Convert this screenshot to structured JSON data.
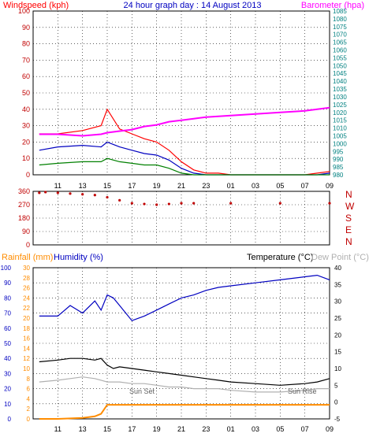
{
  "colors": {
    "wind": "#ff0000",
    "gust": "#ff0000",
    "avg": "#0000c0",
    "low": "#008000",
    "baro": "#ff00ff",
    "dir": "#c00000",
    "rain": "#ff8c00",
    "humidity": "#0000c0",
    "temp": "#000000",
    "dew": "#b0b0b0",
    "axisBlue": "#0000c0",
    "axisGreen": "#008080",
    "grid": "#000000"
  },
  "header": {
    "windspeed": "Windspeed (kph)",
    "title": "24 hour graph day : 14 August 2013",
    "barometer": "Barometer (hpa)"
  },
  "labels": {
    "rainfall": "Rainfall (mm)",
    "humidity": "Humidity (%)",
    "temperature": "Temperature (°C)",
    "dewpoint": "Dew Point (°C)",
    "sunset": "Sun Set",
    "sunrise": "Sun Rise"
  },
  "chart_data": [
    {
      "type": "line",
      "x_ticks": [
        "11",
        "13",
        "15",
        "17",
        "19",
        "21",
        "23",
        "01",
        "03",
        "05",
        "07",
        "09"
      ],
      "x": [
        9.5,
        11,
        13,
        14.5,
        15,
        16,
        17,
        18,
        19,
        20,
        21,
        22,
        23,
        24,
        25,
        27,
        29,
        31,
        32,
        33
      ],
      "left_axis": {
        "label": "Windspeed (kph)",
        "ylim": [
          0,
          100
        ],
        "ticks": [
          0,
          10,
          20,
          30,
          40,
          50,
          60,
          70,
          80,
          90,
          100
        ]
      },
      "right_axis": {
        "label": "Barometer (hpa)",
        "ylim": [
          980,
          1085
        ],
        "ticks": [
          980,
          985,
          990,
          995,
          1000,
          1005,
          1010,
          1015,
          1020,
          1025,
          1030,
          1035,
          1040,
          1045,
          1050,
          1055,
          1060,
          1065,
          1070,
          1075,
          1080,
          1085
        ]
      },
      "series": [
        {
          "name": "Windspeed (kph)",
          "axis": "left",
          "values": [
            25,
            25,
            27,
            30,
            40,
            28,
            25,
            22,
            20,
            15,
            8,
            3,
            1,
            1,
            0,
            0,
            0,
            0,
            1,
            2
          ]
        },
        {
          "values": [
            15,
            17,
            18,
            17,
            20,
            17,
            15,
            13,
            12,
            9,
            4,
            1,
            0,
            0,
            0,
            0,
            0,
            0,
            0,
            1
          ]
        },
        {
          "values": [
            6,
            7,
            8,
            8,
            10,
            8,
            7,
            6,
            6,
            4,
            1,
            0,
            0,
            0,
            0,
            0,
            0,
            0,
            0,
            0
          ]
        },
        {
          "name": "Barometer (hpa)",
          "axis": "right",
          "values": [
            1006,
            1006,
            1005,
            1006,
            1007,
            1008,
            1009,
            1011,
            1012,
            1014,
            1015,
            1016,
            1017,
            1017.5,
            1018,
            1019,
            1020,
            1021,
            1022,
            1023
          ]
        }
      ]
    },
    {
      "type": "scatter",
      "x_ticks": [],
      "x": [
        9.5,
        10,
        11,
        12,
        13,
        14,
        15,
        16,
        17,
        18,
        19,
        20,
        21,
        22,
        25,
        29,
        33
      ],
      "left_axis": {
        "ylim": [
          0,
          360
        ],
        "ticks": [
          0,
          90,
          180,
          270,
          360
        ]
      },
      "right_axis": {
        "ticks": [
          "N",
          "W",
          "S",
          "E",
          "N"
        ]
      },
      "series": [
        {
          "values": [
            350,
            355,
            350,
            345,
            340,
            335,
            320,
            300,
            280,
            275,
            270,
            275,
            280,
            280,
            280,
            280,
            280
          ]
        }
      ]
    },
    {
      "type": "line",
      "x_ticks": [
        "11",
        "13",
        "15",
        "17",
        "19",
        "21",
        "23",
        "01",
        "03",
        "05",
        "07",
        "09"
      ],
      "x": [
        9.5,
        11,
        12,
        13,
        14,
        14.5,
        15,
        15.5,
        16,
        17,
        18,
        19,
        20,
        21,
        22,
        23,
        24,
        25,
        27,
        29,
        31,
        32,
        33
      ],
      "left_axis": {
        "ylim": [
          0,
          100
        ],
        "ticks": [
          0,
          10,
          20,
          30,
          40,
          50,
          60,
          70,
          80,
          90,
          100
        ]
      },
      "left_axis_2": {
        "ylim": [
          0,
          30
        ],
        "ticks": [
          0,
          2,
          4,
          6,
          8,
          10,
          12,
          14,
          16,
          18,
          20,
          22,
          24,
          26,
          28,
          30
        ]
      },
      "right_axis": {
        "ylim": [
          -5,
          40
        ],
        "ticks": [
          -5,
          0,
          5,
          10,
          15,
          20,
          25,
          30,
          35,
          40
        ]
      },
      "series": [
        {
          "name": "Humidity (%)",
          "axis": "left",
          "values": [
            68,
            68,
            75,
            70,
            78,
            72,
            82,
            80,
            75,
            65,
            68,
            72,
            76,
            80,
            82,
            85,
            87,
            88,
            90,
            92,
            94,
            95,
            92
          ]
        },
        {
          "name": "Temperature (°C)",
          "axis": "right",
          "values": [
            12,
            12.5,
            13,
            13,
            12.5,
            13,
            11,
            10,
            10.5,
            10,
            9.5,
            9,
            8.5,
            8,
            7.5,
            7,
            6.5,
            6,
            5.5,
            5,
            5.5,
            6,
            7
          ]
        },
        {
          "name": "Dew Point (°C)",
          "axis": "right",
          "values": [
            6,
            6.5,
            7,
            7.5,
            7,
            6.5,
            6,
            6,
            6,
            5.5,
            5.5,
            5,
            4.5,
            4.5,
            4,
            4,
            4,
            3.5,
            3,
            3,
            3.5,
            4,
            4
          ]
        },
        {
          "name": "Rainfall (mm)",
          "axis": "left_2",
          "values": [
            0,
            0,
            0.1,
            0.2,
            0.5,
            1,
            2.8,
            2.8,
            2.8,
            2.8,
            2.8,
            2.8,
            2.8,
            2.8,
            2.8,
            2.8,
            2.8,
            2.8,
            2.8,
            2.8,
            2.8,
            2.8,
            2.8
          ]
        }
      ]
    }
  ]
}
